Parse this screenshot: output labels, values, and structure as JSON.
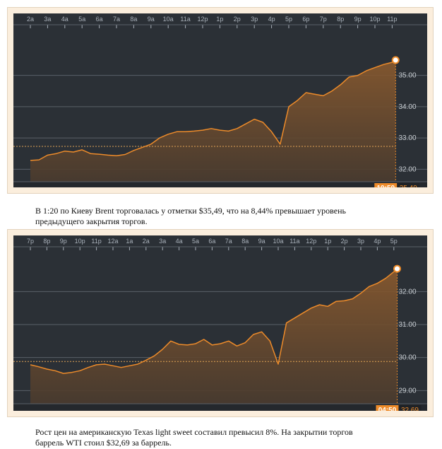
{
  "chart_data": [
    {
      "type": "area",
      "instrument": "Brent",
      "x_tick_labels": [
        "2a",
        "3a",
        "4a",
        "5a",
        "6a",
        "7a",
        "8a",
        "9a",
        "10a",
        "11a",
        "12p",
        "1p",
        "2p",
        "3p",
        "4p",
        "5p",
        "6p",
        "7p",
        "8p",
        "9p",
        "10p",
        "11p"
      ],
      "y_tick_labels": [
        "32.00",
        "33.00",
        "34.00",
        "35.00"
      ],
      "ylim": [
        31.6,
        36.35
      ],
      "reference_price": 32.73,
      "series": [
        {
          "name": "Brent",
          "t": [
            0,
            0.5,
            1,
            1.5,
            2,
            2.5,
            3,
            3.5,
            4,
            4.5,
            5,
            5.5,
            6,
            6.5,
            7,
            7.5,
            8,
            8.5,
            9,
            9.5,
            10,
            10.5,
            11,
            11.5,
            12,
            12.5,
            13,
            13.5,
            14,
            14.5,
            15,
            15.5,
            16,
            16.5,
            17,
            17.5,
            18,
            18.5,
            19,
            19.5,
            20,
            20.5,
            21,
            21.2
          ],
          "values": [
            32.28,
            32.3,
            32.45,
            32.5,
            32.58,
            32.55,
            32.62,
            32.5,
            32.48,
            32.45,
            32.43,
            32.47,
            32.6,
            32.7,
            32.8,
            33.0,
            33.12,
            33.2,
            33.2,
            33.22,
            33.25,
            33.3,
            33.25,
            33.22,
            33.3,
            33.45,
            33.6,
            33.5,
            33.2,
            32.8,
            34.0,
            34.2,
            34.45,
            34.4,
            34.35,
            34.5,
            34.7,
            34.95,
            35.0,
            35.15,
            35.25,
            35.35,
            35.42,
            35.49
          ]
        }
      ],
      "badge_time": "10:50",
      "badge_value": "35.49"
    },
    {
      "type": "area",
      "instrument": "WTI",
      "x_tick_labels": [
        "7p",
        "8p",
        "9p",
        "10p",
        "11p",
        "12a",
        "1a",
        "2a",
        "3a",
        "4a",
        "5a",
        "6a",
        "7a",
        "8a",
        "9a",
        "10a",
        "11a",
        "12p",
        "1p",
        "2p",
        "3p",
        "4p",
        "5p"
      ],
      "y_tick_labels": [
        "29.00",
        "30.00",
        "31.00",
        "32.00"
      ],
      "ylim": [
        28.6,
        33.1
      ],
      "reference_price": 29.88,
      "series": [
        {
          "name": "WTI",
          "t": [
            0,
            0.5,
            1,
            1.5,
            2,
            2.5,
            3,
            3.5,
            4,
            4.5,
            5,
            5.5,
            6,
            6.5,
            7,
            7.5,
            8,
            8.5,
            9,
            9.5,
            10,
            10.5,
            11,
            11.5,
            12,
            12.5,
            13,
            13.5,
            14,
            14.5,
            15,
            15.5,
            16,
            16.5,
            17,
            17.5,
            18,
            18.5,
            19,
            19.5,
            20,
            20.5,
            21,
            21.5,
            22,
            22.2
          ],
          "values": [
            29.78,
            29.72,
            29.65,
            29.6,
            29.52,
            29.55,
            29.6,
            29.7,
            29.78,
            29.8,
            29.75,
            29.7,
            29.75,
            29.8,
            29.92,
            30.05,
            30.25,
            30.5,
            30.4,
            30.38,
            30.42,
            30.55,
            30.38,
            30.42,
            30.5,
            30.35,
            30.45,
            30.7,
            30.78,
            30.5,
            29.8,
            31.05,
            31.2,
            31.35,
            31.5,
            31.6,
            31.55,
            31.7,
            31.72,
            31.78,
            31.95,
            32.15,
            32.25,
            32.4,
            32.6,
            32.69
          ]
        }
      ],
      "badge_time": "04:50",
      "badge_value": "32.69"
    }
  ],
  "captions": [
    "В 1:20 по Киеву Brent торговалась у отметки $35,49, что на 8,44% превышает уровень предыдущего закрытия торгов.",
    "Рост цен на американскую Texas light sweet составил превысил 8%. На закрытии торгов баррель WTI стоил $32,69 за баррель."
  ],
  "colors": {
    "background": "#2b3036",
    "grid": "#5a6068",
    "tick_text": "#a9b1ba",
    "line": "#ed8b2a",
    "badge": "#ed8b2a",
    "badge_value_bg": "#1f2226",
    "reference_line": "#e2a455",
    "price_label": "#c8cdd2"
  }
}
